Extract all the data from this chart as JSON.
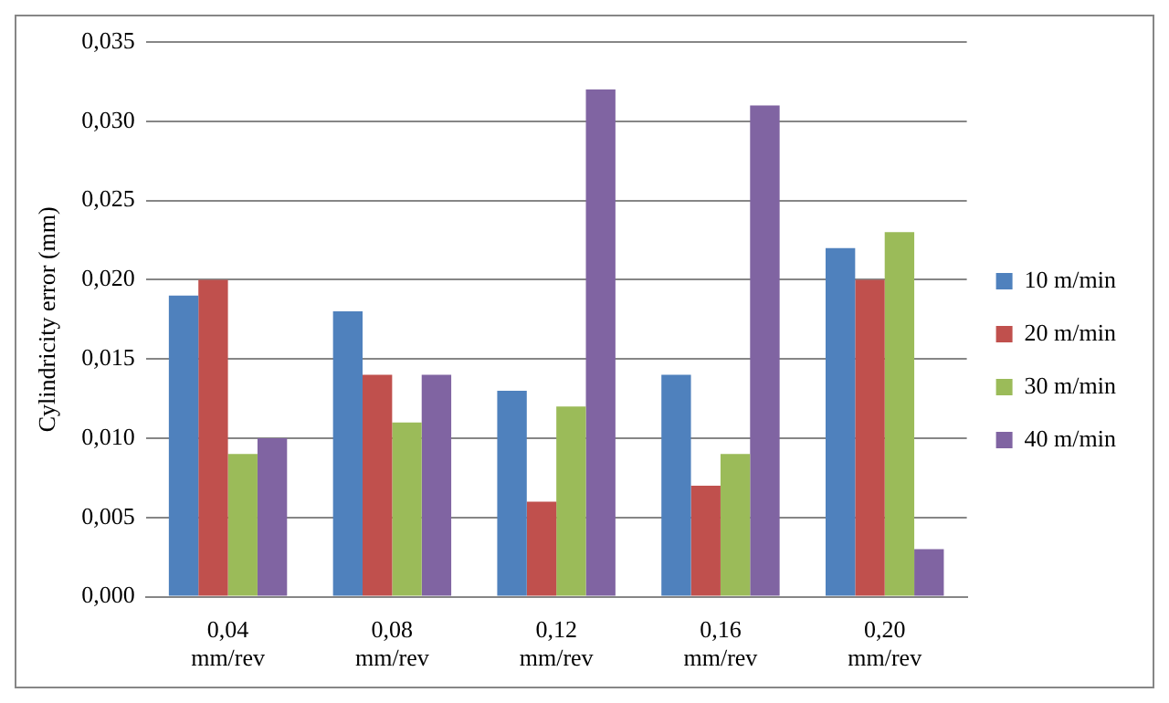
{
  "chart_data": {
    "type": "bar",
    "ylabel": "Cylindricity error (mm)",
    "categories": [
      "0,04\nmm/rev",
      "0,08\nmm/rev",
      "0,12\nmm/rev",
      "0,16\nmm/rev",
      "0,20\nmm/rev"
    ],
    "series": [
      {
        "name": "10 m/min",
        "color": "#4f81bd",
        "values": [
          0.019,
          0.018,
          0.013,
          0.014,
          0.022
        ]
      },
      {
        "name": "20 m/min",
        "color": "#c0504d",
        "values": [
          0.02,
          0.014,
          0.006,
          0.007,
          0.02
        ]
      },
      {
        "name": "30 m/min",
        "color": "#9bbb59",
        "values": [
          0.009,
          0.011,
          0.012,
          0.009,
          0.023
        ]
      },
      {
        "name": "40 m/min",
        "color": "#8064a2",
        "values": [
          0.01,
          0.014,
          0.032,
          0.031,
          0.003
        ]
      }
    ],
    "ylim": [
      0,
      0.035
    ],
    "yticks": [
      {
        "value": 0,
        "label": "0,000"
      },
      {
        "value": 0.005,
        "label": "0,005"
      },
      {
        "value": 0.01,
        "label": "0,010"
      },
      {
        "value": 0.015,
        "label": "0,015"
      },
      {
        "value": 0.02,
        "label": "0,020"
      },
      {
        "value": 0.025,
        "label": "0,025"
      },
      {
        "value": 0.03,
        "label": "0,030"
      },
      {
        "value": 0.035,
        "label": "0,035"
      }
    ],
    "grid": "y",
    "legend": "right"
  }
}
